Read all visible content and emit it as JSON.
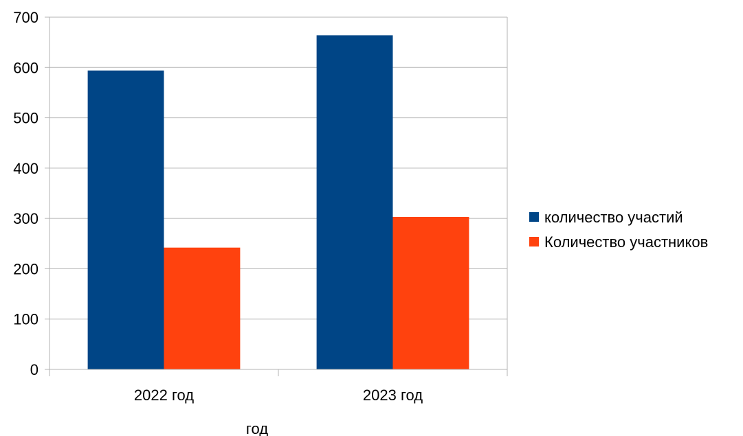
{
  "chart_data": {
    "type": "bar",
    "categories": [
      "2022 год",
      "2023 год"
    ],
    "series": [
      {
        "name": "количество участий",
        "values": [
          594,
          664
        ],
        "color": "#004586"
      },
      {
        "name": "Количество участников",
        "values": [
          242,
          303
        ],
        "color": "#ff420e"
      }
    ],
    "title": "",
    "xlabel": "год",
    "ylabel": "",
    "ylim": [
      0,
      700
    ],
    "yticks": [
      0,
      100,
      200,
      300,
      400,
      500,
      600,
      700
    ],
    "grid": true,
    "legend_position": "right",
    "colors": {
      "grid": "#b3b3b3",
      "axis": "#b3b3b3",
      "text": "#000000"
    }
  }
}
